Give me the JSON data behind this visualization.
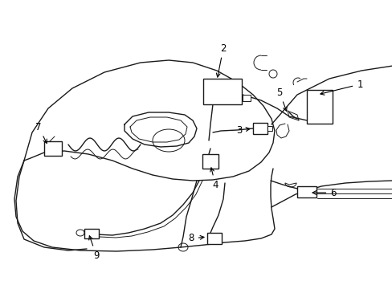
{
  "background_color": "#ffffff",
  "line_color": "#1a1a1a",
  "label_color": "#000000",
  "fig_width": 4.89,
  "fig_height": 3.6,
  "dpi": 100,
  "font_size": 8.5,
  "lw_main": 1.0,
  "lw_thin": 0.7
}
